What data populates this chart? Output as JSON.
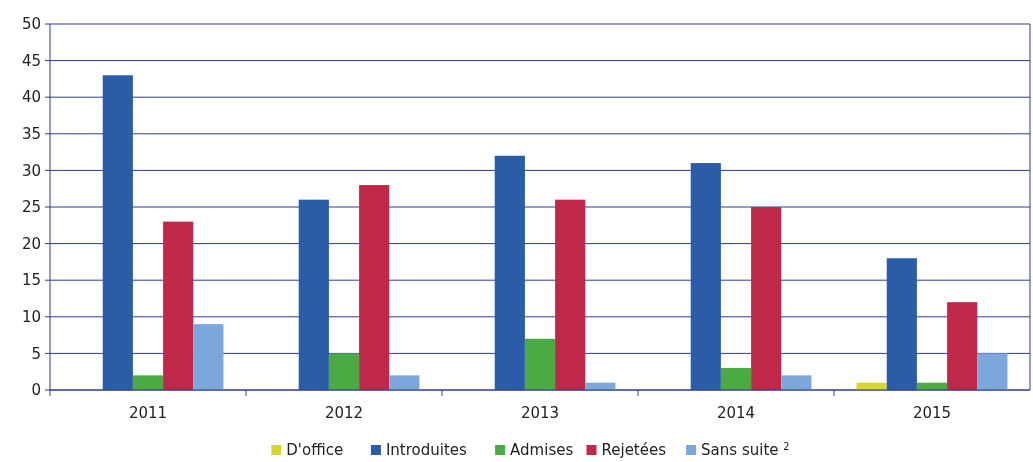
{
  "chart_data": {
    "type": "bar",
    "categories": [
      "2011",
      "2012",
      "2013",
      "2014",
      "2015"
    ],
    "series": [
      {
        "name": "D'office",
        "color": "#d6d62e",
        "values": [
          0,
          0,
          0,
          0,
          1
        ]
      },
      {
        "name": "Introduites",
        "color": "#2b5ca8",
        "values": [
          43,
          26,
          32,
          31,
          18
        ]
      },
      {
        "name": "Admises",
        "color": "#4aab45",
        "values": [
          2,
          5,
          7,
          3,
          1
        ]
      },
      {
        "name": "Rejetées",
        "color": "#c0284a",
        "values": [
          23,
          28,
          26,
          25,
          12
        ]
      },
      {
        "name": "Sans suite $^{2}$",
        "color": "#7ba7da",
        "values": [
          9,
          2,
          1,
          2,
          5
        ]
      }
    ],
    "ylim": [
      0,
      50
    ],
    "yticks": [
      0,
      5,
      10,
      15,
      20,
      25,
      30,
      35,
      40,
      45,
      50
    ],
    "grid": "y",
    "legend": "bottom"
  }
}
